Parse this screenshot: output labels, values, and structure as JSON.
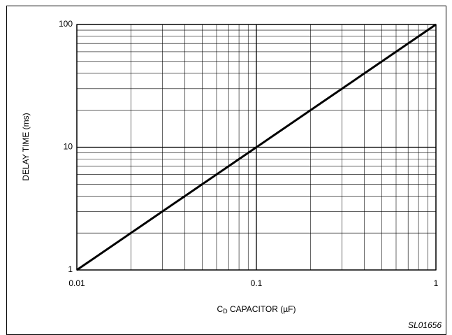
{
  "chart_data": {
    "type": "line",
    "x_label": {
      "main": "C",
      "subscript": "D",
      "rest": " CAPACITOR (µF)"
    },
    "y_label": "DELAY TIME (ms)",
    "annotation": "SL01656",
    "x": [
      0.01,
      1
    ],
    "series": [
      {
        "color": "#000000",
        "values": [
          1,
          100
        ]
      }
    ],
    "xlim": [
      0.01,
      1
    ],
    "ylim": [
      1,
      100
    ],
    "xticks": [
      0.01,
      0.1,
      1
    ],
    "yticks": [
      1,
      10,
      100
    ],
    "xscale": "log",
    "yscale": "log",
    "grid": true
  }
}
